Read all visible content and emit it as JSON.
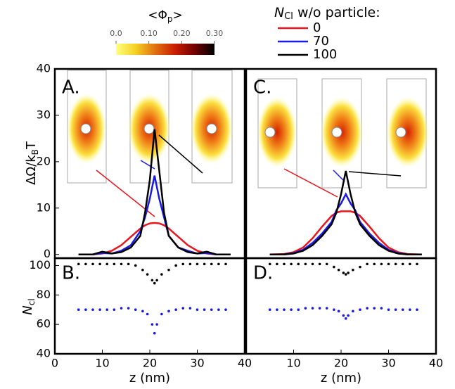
{
  "colorbar": {
    "title_main": "<Φ",
    "title_sub": "p",
    "title_end": ">",
    "lim": [
      0,
      0.3
    ],
    "colors": [
      "#ffff80",
      "#f5d020",
      "#e07010",
      "#c81e00",
      "#700000",
      "#000000"
    ],
    "ticks": [
      {
        "value": 0,
        "label": "0.0"
      },
      {
        "value": 0.1,
        "label": "0.10"
      },
      {
        "value": 0.2,
        "label": "0.20"
      },
      {
        "value": 0.3,
        "label": "0.30"
      }
    ]
  },
  "legend": {
    "title_main": "N",
    "title_sub": "Cl",
    "title_end": " w/o particle:"
  },
  "y_label_top": {
    "main": "ΔΩ/k",
    "sub": "B",
    "end": "T"
  },
  "y_label_bottom": {
    "main": "N",
    "sub": "cl"
  },
  "chart_data": [
    {
      "type": "line",
      "title": "A.",
      "xlim": [
        0,
        40
      ],
      "ylim": [
        -0.8,
        40
      ],
      "yticks": [
        0,
        10,
        20,
        30,
        40
      ],
      "x": [
        5,
        8,
        10,
        12,
        14,
        16,
        18,
        19,
        20,
        21,
        22,
        23,
        24,
        26,
        28,
        30,
        32,
        34,
        37
      ],
      "series": [
        {
          "name": "0",
          "color": "#e8141e",
          "values": [
            0,
            0,
            0.2,
            0.8,
            2,
            3.8,
            5.6,
            6.3,
            6.7,
            6.8,
            6.7,
            6.3,
            5.6,
            3.8,
            2,
            0.8,
            0.2,
            0,
            0
          ]
        },
        {
          "name": "70",
          "color": "#1a1ae6",
          "values": [
            0,
            0,
            0.3,
            0.2,
            0.8,
            2,
            5,
            8,
            12,
            17,
            12,
            8,
            4,
            1.5,
            0.8,
            0.2,
            0.3,
            0,
            0
          ]
        },
        {
          "name": "100",
          "color": "#000000",
          "values": [
            0,
            0,
            0.6,
            0.2,
            0.5,
            1.5,
            4,
            9,
            16,
            27,
            18,
            9,
            4,
            1.5,
            0.5,
            0.2,
            0.6,
            0,
            0
          ]
        }
      ]
    },
    {
      "type": "scatter",
      "title": "B.",
      "x_label": "z (nm)",
      "xlim": [
        0,
        40
      ],
      "ylim": [
        40,
        105
      ],
      "xticks": [
        0,
        10,
        20,
        30,
        40
      ],
      "yticks": [
        40,
        60,
        80,
        100
      ],
      "x": [
        5,
        6.5,
        8,
        9.5,
        11,
        12.5,
        14,
        15.5,
        17,
        18.5,
        19.5,
        20.5,
        21,
        21.5,
        22.5,
        24,
        25.5,
        27,
        28.5,
        30,
        31.5,
        33,
        34.5,
        36
      ],
      "series": [
        {
          "color": "#000000",
          "values": [
            101,
            101,
            101,
            101,
            101,
            101,
            101,
            101,
            100,
            97,
            94,
            90,
            88,
            90,
            94,
            97,
            100,
            101,
            101,
            101,
            101,
            101,
            101,
            101
          ]
        },
        {
          "color": "#1a1ae6",
          "values": [
            70,
            70,
            70,
            70,
            70,
            70,
            71,
            71,
            70,
            69,
            67,
            60,
            54,
            60,
            67,
            69,
            70,
            71,
            71,
            70,
            70,
            70,
            70,
            70
          ]
        }
      ]
    },
    {
      "type": "line",
      "title": "C.",
      "xlim": [
        0,
        40
      ],
      "ylim": [
        -0.8,
        40
      ],
      "x": [
        5,
        8,
        10,
        12,
        14,
        16,
        18,
        19,
        20,
        21,
        22,
        23,
        24,
        26,
        28,
        30,
        32,
        34,
        37
      ],
      "series": [
        {
          "color": "#e8141e",
          "values": [
            0,
            0.1,
            0.5,
            1.5,
            3.5,
            6,
            8.3,
            9,
            9.3,
            9.3,
            9.3,
            9,
            8.3,
            6,
            3.5,
            1.5,
            0.5,
            0.1,
            0
          ]
        },
        {
          "color": "#1a1ae6",
          "values": [
            0,
            0,
            0.3,
            1,
            2.5,
            4.5,
            7,
            9.5,
            11,
            13,
            11,
            9.5,
            7,
            4.5,
            2.5,
            1,
            0.3,
            0,
            0
          ]
        },
        {
          "color": "#000000",
          "values": [
            0,
            0,
            0.2,
            0.8,
            2,
            4,
            6.5,
            9,
            13,
            18,
            13,
            9,
            6.5,
            4,
            2,
            0.8,
            0.2,
            0,
            0
          ]
        }
      ]
    },
    {
      "type": "scatter",
      "title": "D.",
      "x_label": "z (nm)",
      "xlim": [
        0,
        40
      ],
      "ylim": [
        40,
        105
      ],
      "xticks": [
        10,
        20,
        30,
        40
      ],
      "x": [
        5,
        6.5,
        8,
        9.5,
        11,
        12.5,
        14,
        15.5,
        17,
        18.5,
        19.5,
        20.5,
        21,
        21.5,
        22.5,
        24,
        25.5,
        27,
        28.5,
        30,
        31.5,
        33,
        34.5,
        36
      ],
      "series": [
        {
          "color": "#000000",
          "values": [
            101,
            101,
            101,
            101,
            101,
            101,
            101,
            101,
            101,
            99,
            97,
            95,
            94,
            95,
            97,
            99,
            101,
            101,
            101,
            101,
            101,
            101,
            101,
            101
          ]
        },
        {
          "color": "#1a1ae6",
          "values": [
            70,
            70,
            70,
            70,
            70,
            71,
            71,
            71,
            71,
            70,
            69,
            66,
            64,
            66,
            69,
            70,
            71,
            71,
            71,
            70,
            70,
            70,
            70,
            70
          ]
        }
      ]
    }
  ]
}
